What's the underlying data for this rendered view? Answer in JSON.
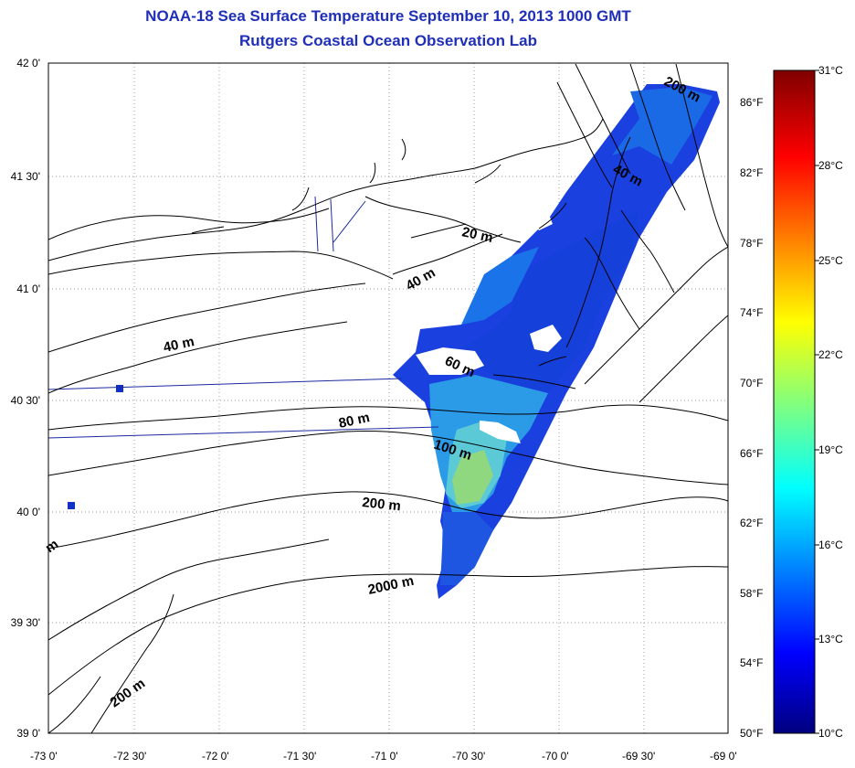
{
  "title": "NOAA-18 Sea Surface Temperature September 10, 2013 1000 GMT",
  "subtitle": "Rutgers Coastal Ocean Observation Lab",
  "x_ticks": [
    "-73 0'",
    "-72 30'",
    "-72 0'",
    "-71 30'",
    "-71 0'",
    "-70 30'",
    "-70 0'",
    "-69 30'",
    "-69 0'"
  ],
  "y_ticks": [
    "42 0'",
    "41 30'",
    "41 0'",
    "40 30'",
    "40 0'",
    "39 30'",
    "39 0'"
  ],
  "colorbar": {
    "celsius": [
      "31°C",
      "28°C",
      "25°C",
      "22°C",
      "19°C",
      "16°C",
      "13°C",
      "10°C"
    ],
    "fahrenheit": [
      "86°F",
      "82°F",
      "78°F",
      "74°F",
      "70°F",
      "66°F",
      "62°F",
      "58°F",
      "54°F",
      "50°F"
    ],
    "min_c": 10,
    "max_c": 31
  },
  "contour_labels": {
    "l20": "20 m",
    "l40a": "40 m",
    "l40b": "40 m",
    "l40c": "40 m",
    "l60": "60 m",
    "l80": "80 m",
    "l100": "100 m",
    "l200a": "200 m",
    "l200b": "200 m",
    "l200c": "200 m",
    "l2000": "2000 m",
    "lm": "m"
  },
  "colors": {
    "title": "#1f2fb8",
    "cold": "#1030d8",
    "mid": "#1a7ae8",
    "warm": "#8fd880"
  }
}
